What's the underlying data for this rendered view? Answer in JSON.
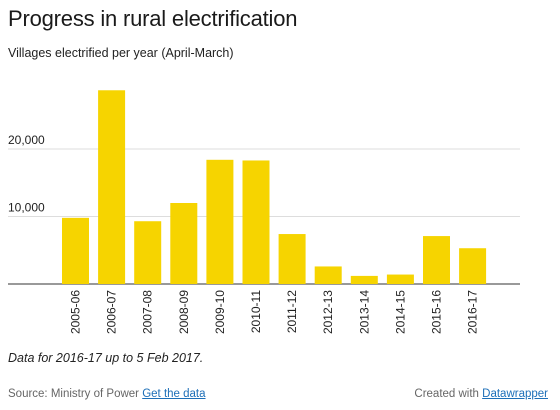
{
  "title": "Progress in rural electrification",
  "subtitle": "Villages electrified per year (April-March)",
  "note": "Data for 2016-17 up to 5 Feb 2017.",
  "footer": {
    "source_text": "Source: Ministry of Power",
    "source_link": "Get the data",
    "credit_text": "Created with",
    "credit_link": "Datawrapper"
  },
  "colors": {
    "bar": "#f6d400",
    "grid": "#dddddd",
    "baseline": "#333333"
  },
  "chart_data": {
    "type": "bar",
    "title": "Progress in rural electrification",
    "subtitle": "Villages electrified per year (April-March)",
    "categories": [
      "2005-06",
      "2006-07",
      "2007-08",
      "2008-09",
      "2009-10",
      "2010-11",
      "2011-12",
      "2012-13",
      "2013-14",
      "2014-15",
      "2015-16",
      "2016-17"
    ],
    "values": [
      9800,
      28700,
      9300,
      12000,
      18400,
      18300,
      7400,
      2600,
      1200,
      1400,
      7100,
      5300
    ],
    "ylim": [
      0,
      30000
    ],
    "yticks": [
      10000,
      20000
    ],
    "ytick_labels": [
      "10,000",
      "20,000"
    ],
    "grid": true,
    "xlabel": "",
    "ylabel": ""
  }
}
